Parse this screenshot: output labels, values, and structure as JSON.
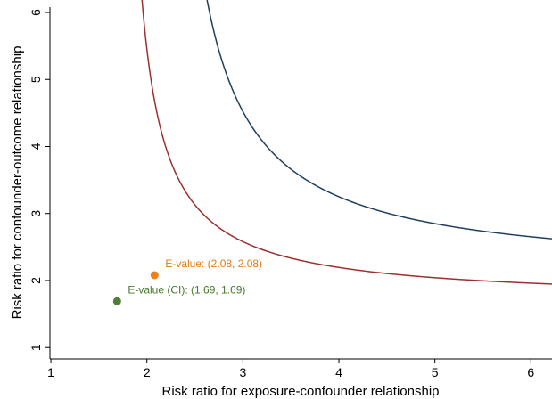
{
  "chart_data": {
    "type": "line",
    "title": "",
    "xlabel": "Risk ratio for exposure-confounder relationship",
    "ylabel": "Risk ratio for confounder-outcome relationship",
    "xlim": [
      0.99,
      6.22
    ],
    "ylim": [
      0.83,
      6.08
    ],
    "x_ticks": [
      1,
      2,
      3,
      4,
      5,
      6
    ],
    "x_tick_labels": [
      "1",
      "2",
      "3",
      "4",
      "5",
      "6"
    ],
    "y_ticks": [
      1,
      2,
      3,
      4,
      5,
      6
    ],
    "y_tick_labels": [
      "1",
      "2",
      "3",
      "4",
      "5",
      "6"
    ],
    "grid": false,
    "legend": "none",
    "series": [
      {
        "rr": 2.08,
        "color": "#1f3f5f",
        "x_range": [
          1.505,
          6.22
        ]
      },
      {
        "rr": 1.69,
        "color": "#9b3030",
        "x_range": [
          1.25,
          6.22
        ]
      }
    ],
    "points": [
      {
        "x": 2.08,
        "y": 2.08,
        "label": "E-value: (2.08, 2.08)",
        "color": "#f07f1a",
        "text_color": "#e27a12"
      },
      {
        "x": 1.69,
        "y": 1.69,
        "label": "E-value (CI): (1.69, 1.69)",
        "color": "#4f7f34",
        "text_color": "#477a2b"
      }
    ]
  }
}
